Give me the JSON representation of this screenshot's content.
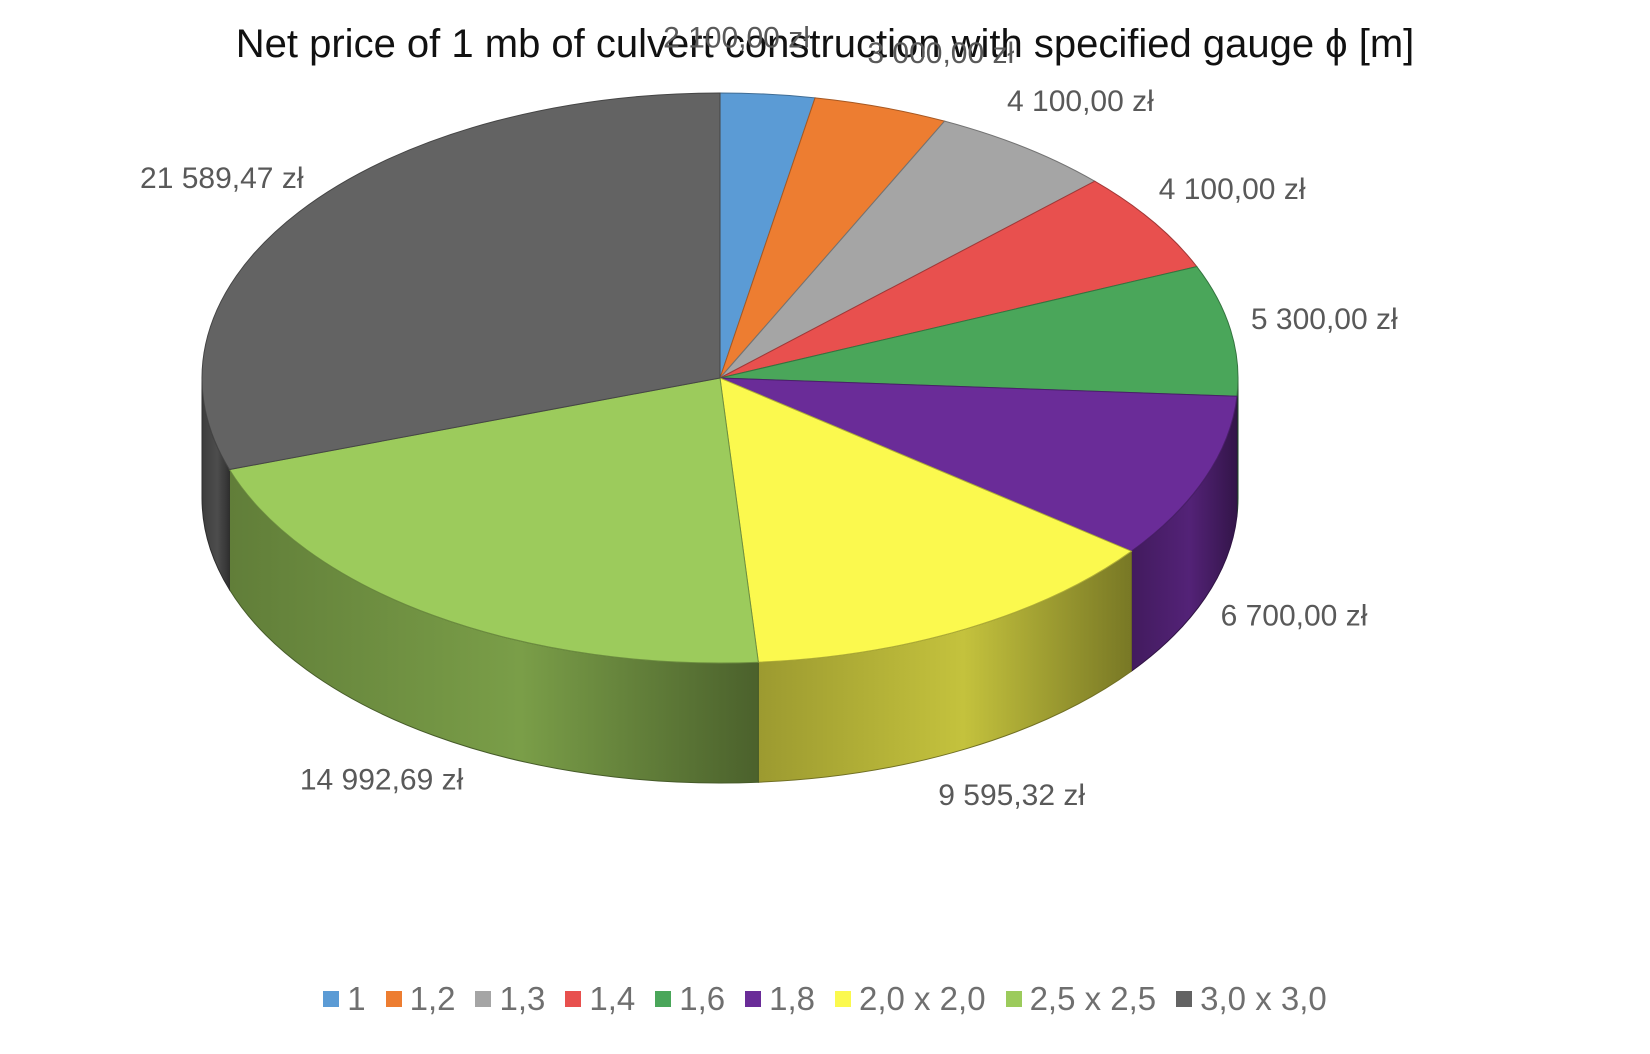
{
  "chart_data": {
    "type": "pie",
    "title": "Net price of 1 mb of culvert construction with specified gauge ϕ [m]",
    "categories": [
      "1",
      "1,2",
      "1,3",
      "1,4",
      "1,6",
      "1,8",
      "2,0 x 2,0",
      "2,5 x 2,5",
      "3,0 x 3,0"
    ],
    "values": [
      2100.0,
      3000.0,
      4100.0,
      4100.0,
      5300.0,
      6700.0,
      9595.32,
      14992.69,
      21589.47
    ],
    "data_labels": [
      "2 100,00 zł",
      "3 000,00 zł",
      "4 100,00 zł",
      "4 100,00 zł",
      "5 300,00 zł",
      "6 700,00 zł",
      "9 595,32 zł",
      "14 992,69 zł",
      "21 589,47 zł"
    ],
    "colors": [
      "#5b9bd5",
      "#ed7d31",
      "#a5a5a5",
      "#e8504e",
      "#4aa65a",
      "#6a2c98",
      "#fbf94e",
      "#9ccb5c",
      "#636363"
    ],
    "legend_position": "bottom",
    "style": "3d"
  }
}
